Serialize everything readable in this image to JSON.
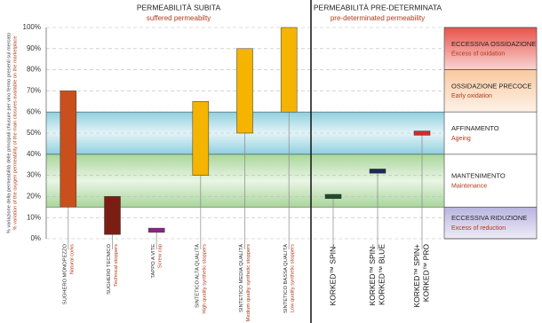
{
  "chart_data": {
    "type": "range",
    "ylabel": [
      "% variazione della permeabilità delle principali chiusure per vino fermo presenti sul mercato",
      "% variation of the oxygen permeability of the main closures available on the marketplace"
    ],
    "ylim": [
      0,
      100
    ],
    "yticks": [
      {
        "value": 0,
        "label": "0%"
      },
      {
        "value": 10,
        "label": "10%"
      },
      {
        "value": 20,
        "label": "20%"
      },
      {
        "value": 30,
        "label": "30%"
      },
      {
        "value": 40,
        "label": "40%"
      },
      {
        "value": 50,
        "label": "50%"
      },
      {
        "value": 60,
        "label": "60%"
      },
      {
        "value": 70,
        "label": "70%"
      },
      {
        "value": 80,
        "label": "80%"
      },
      {
        "value": 90,
        "label": "90%"
      },
      {
        "value": 100,
        "label": "100%"
      }
    ],
    "grid": true,
    "sections": [
      {
        "title": "PERMEABILITÀ SUBITA",
        "subtitle": "suffered permeabilty",
        "categories": [
          [
            "SUGHERO MONOPEZZO",
            "Natural corks"
          ],
          [
            "SUGHERO TECNICO",
            "Technical stoppers"
          ],
          [
            "TAPPO A VITE",
            "Screw cap"
          ],
          [
            "SINTETICO ALTA QUALITÀ",
            "High quality synthetic stoppers"
          ],
          [
            "SINTETICO MEDIA QUALITÀ",
            "Medium quality synthetic stoppers"
          ],
          [
            "SINTETICO BASSA QUALITÀ",
            "Low quality synthetic stoppers"
          ]
        ],
        "low": [
          15,
          2,
          3,
          30,
          50,
          60
        ],
        "high": [
          70,
          20,
          5,
          65,
          90,
          100
        ],
        "colors": [
          "#c9501c",
          "#7a1e14",
          "#8e2288",
          "#f5b400",
          "#f5b400",
          "#f5b400"
        ]
      },
      {
        "title": "PERMEABILITÀ PRE-DETERMINATA",
        "subtitle": "pre-determinated permeability",
        "categories": [
          [
            "KORKED™ SPIN-"
          ],
          [
            "KORKED™ SPIN-",
            "KORKED™ BLUE"
          ],
          [
            "KORKED™ SPIN+",
            "KORKED™ PRO"
          ]
        ],
        "low": [
          19,
          31,
          49
        ],
        "high": [
          21,
          33,
          51
        ],
        "colors": [
          "#1e4d2b",
          "#1c2a5a",
          "#d42a2a"
        ]
      }
    ],
    "zones": [
      {
        "label": "ECCESSIVA OSSIDAZIONE",
        "sublabel": "Excess of oxidation",
        "from": 80,
        "to": 100,
        "color": "#e8534a",
        "band_color": null
      },
      {
        "label": "OSSIDAZIONE PRECOCE",
        "sublabel": "Early oxidation",
        "from": 60,
        "to": 80,
        "color": "#f9c9a0",
        "band_color": null
      },
      {
        "label": "AFFINAMENTO",
        "sublabel": "Ageing",
        "from": 40,
        "to": 60,
        "color": "#ffffff",
        "band_color": "#8fd0df"
      },
      {
        "label": "MANTENIMENTO",
        "sublabel": "Maintenance",
        "from": 15,
        "to": 40,
        "color": "#ffffff",
        "band_color": "#a9d69a"
      },
      {
        "label": "ECCESSIVA RIDUZIONE",
        "sublabel": "Excess of reduction",
        "from": 0,
        "to": 15,
        "color": "#b9b3e0",
        "band_color": null
      }
    ]
  }
}
